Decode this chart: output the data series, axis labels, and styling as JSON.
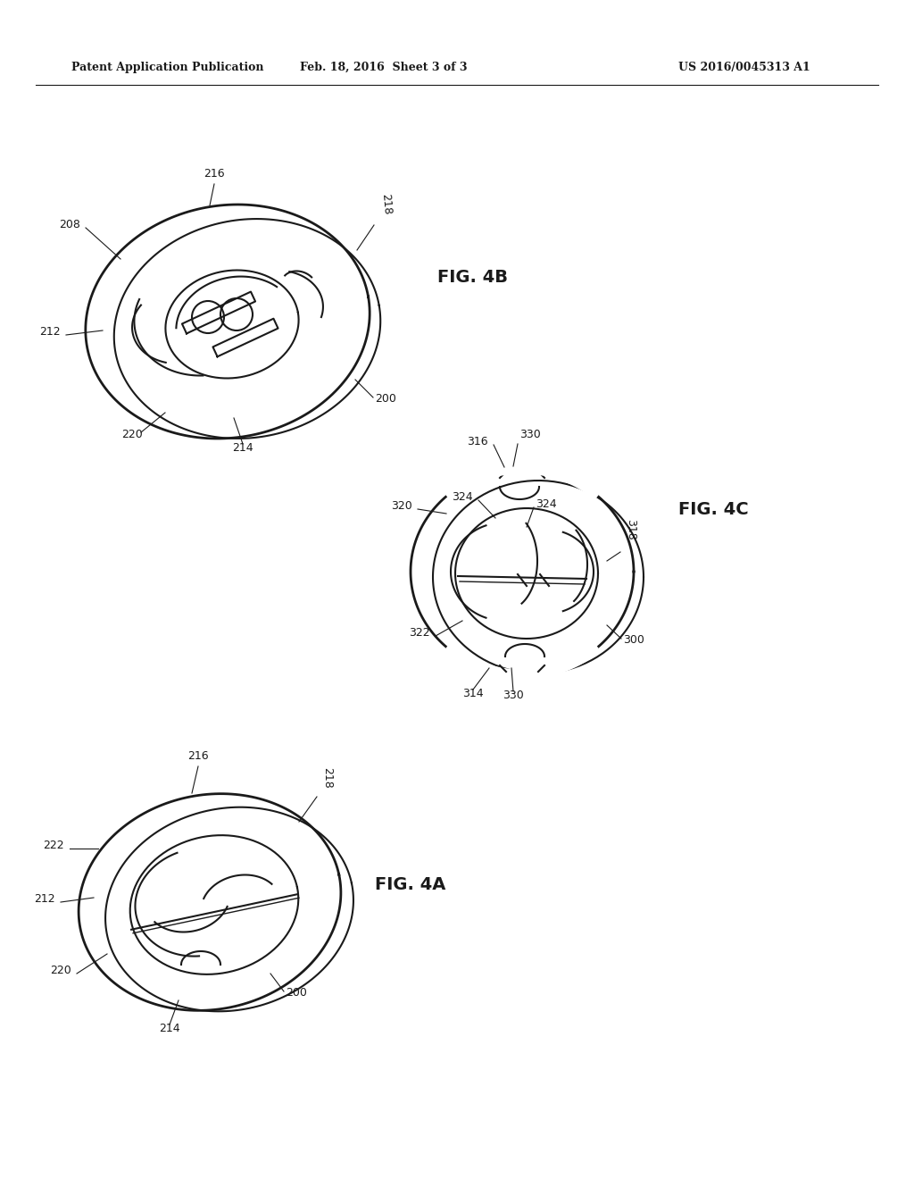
{
  "bg_color": "#ffffff",
  "line_color": "#1a1a1a",
  "header_left": "Patent Application Publication",
  "header_mid": "Feb. 18, 2016  Sheet 3 of 3",
  "header_right": "US 2016/0045313 A1",
  "fig4b_label": "FIG. 4B",
  "fig4c_label": "FIG. 4C",
  "fig4a_label": "FIG. 4A"
}
